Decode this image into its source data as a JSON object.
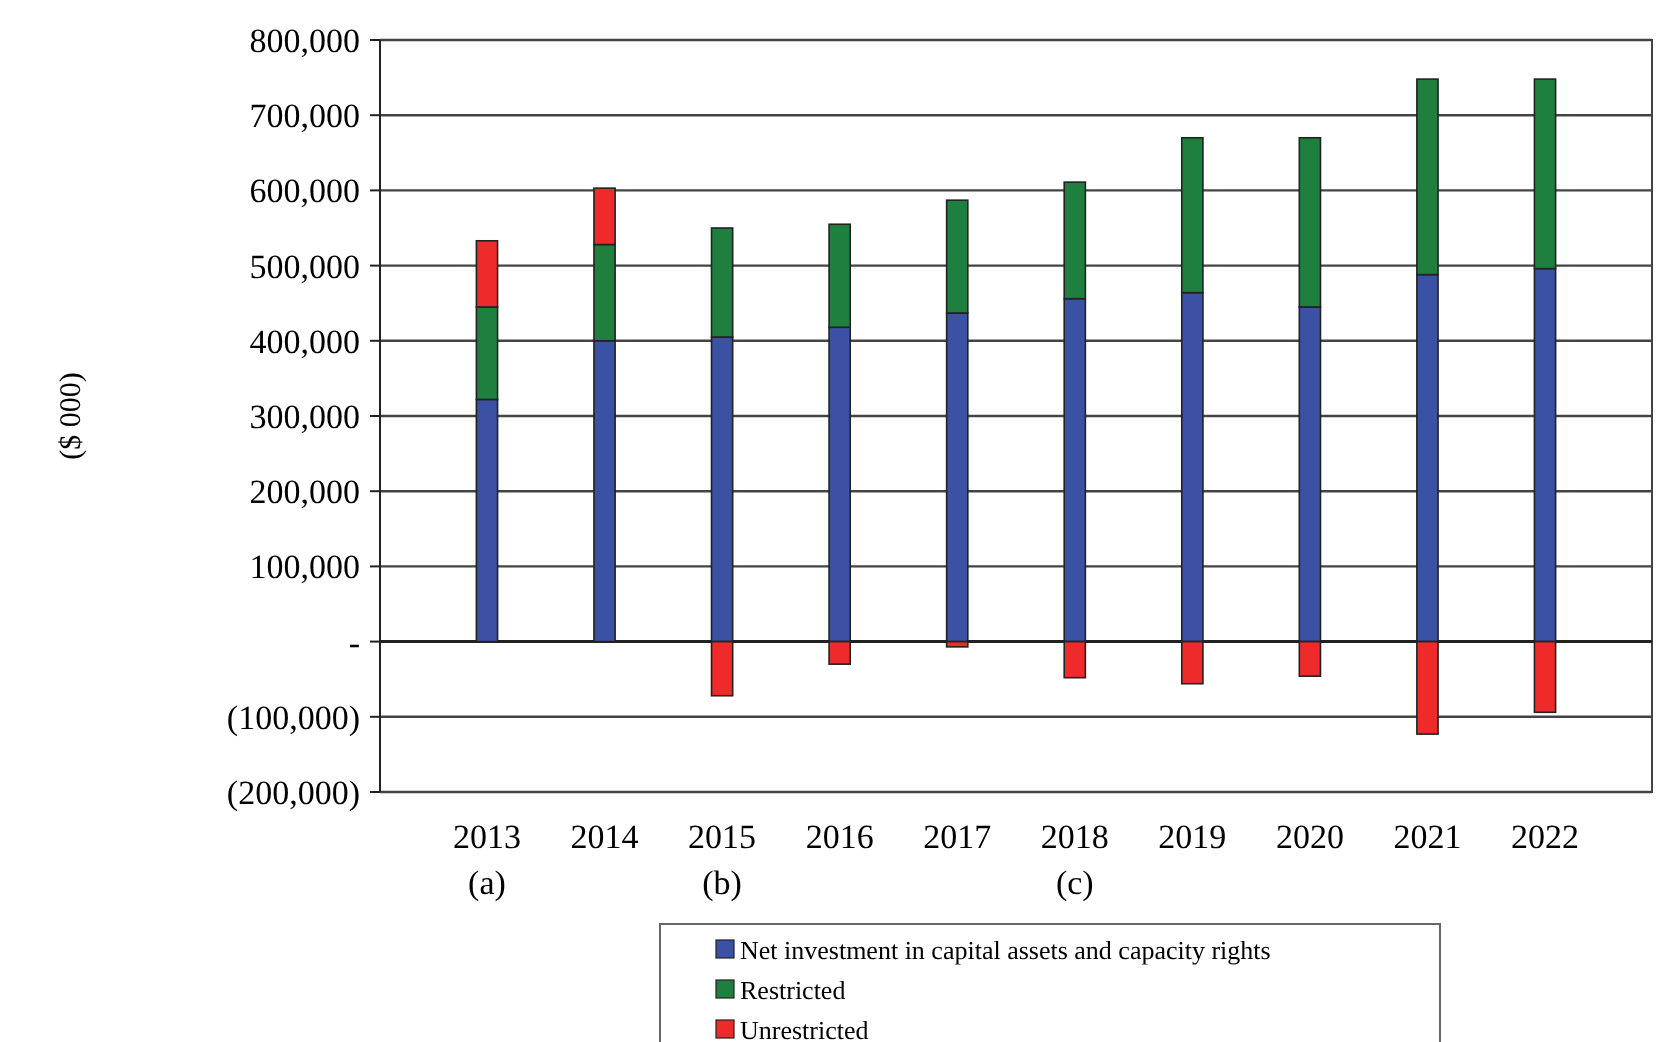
{
  "chart_data": {
    "type": "bar",
    "stacked": true,
    "ylabel": "($ 000)",
    "categories": [
      "2013\n(a)",
      "2014",
      "2015\n(b)",
      "2016",
      "2017",
      "2018\n(c)",
      "2019",
      "2020",
      "2021",
      "2022"
    ],
    "series": [
      {
        "name": "Net investment in capital assets and capacity rights",
        "color": "#3b51a3",
        "values": [
          322000,
          400000,
          405000,
          418000,
          437000,
          456000,
          464000,
          445000,
          488000,
          496000
        ]
      },
      {
        "name": "Restricted",
        "color": "#1f7f3f",
        "values": [
          123000,
          128000,
          145000,
          137000,
          150000,
          155000,
          206000,
          225000,
          260000,
          252000
        ]
      },
      {
        "name": "Unrestricted",
        "color": "#ee2a2a",
        "values": [
          88000,
          75000,
          -72000,
          -30000,
          -7000,
          -48000,
          -56000,
          -46000,
          -123000,
          -94000
        ]
      }
    ],
    "ylim": [
      -200000,
      800000
    ],
    "yticks": [
      {
        "value": -200000,
        "label": "(200,000)"
      },
      {
        "value": -100000,
        "label": "(100,000)"
      },
      {
        "value": 0,
        "label": "-"
      },
      {
        "value": 100000,
        "label": "100,000"
      },
      {
        "value": 200000,
        "label": "200,000"
      },
      {
        "value": 300000,
        "label": "300,000"
      },
      {
        "value": 400000,
        "label": "400,000"
      },
      {
        "value": 500000,
        "label": "500,000"
      },
      {
        "value": 600000,
        "label": "600,000"
      },
      {
        "value": 700000,
        "label": "700,000"
      },
      {
        "value": 800000,
        "label": "800,000"
      }
    ],
    "grid": "y",
    "legend": "bottom"
  }
}
